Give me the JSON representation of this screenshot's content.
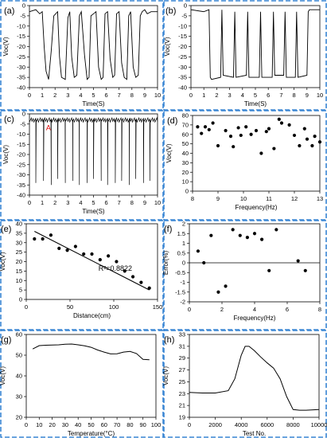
{
  "colors": {
    "frame": "#3a86d4",
    "ink": "#000000",
    "annotation": "#e00000"
  },
  "chart_data": [
    {
      "panel": "(a)",
      "type": "line",
      "xlabel": "Time(S)",
      "ylabel": "Voc(V)",
      "xlim": [
        0,
        10
      ],
      "ylim": [
        -40,
        0
      ],
      "xticks": [
        "0",
        "1",
        "2",
        "3",
        "4",
        "5",
        "6",
        "7",
        "8",
        "9",
        "10"
      ],
      "yticks": [
        "0",
        "-5",
        "-10",
        "-15",
        "-20",
        "-25",
        "-30",
        "-35",
        "-40"
      ],
      "series": [
        {
          "x": [
            0,
            0.5,
            0.8,
            1.0,
            1.15,
            1.3,
            1.5,
            1.7,
            1.9,
            2.2,
            2.35,
            2.5,
            2.8,
            3.0,
            3.15,
            3.3,
            3.5,
            3.7,
            3.9,
            4.05,
            4.3,
            4.5,
            4.65,
            4.8,
            5.0,
            5.2,
            5.4,
            5.6,
            5.75,
            5.9,
            6.1,
            6.3,
            6.5,
            6.65,
            6.8,
            7.0,
            7.2,
            7.4,
            7.6,
            7.75,
            7.9,
            8.1,
            8.3,
            8.5,
            8.65,
            8.8,
            9.0,
            9.2,
            9.5,
            10.0
          ],
          "values": [
            -3,
            -2,
            -4,
            -3,
            -20,
            -32,
            -36,
            -22,
            -5,
            -3,
            -25,
            -35,
            -36,
            -6,
            -3,
            -25,
            -35,
            -34,
            -5,
            -3,
            -24,
            -36,
            -35,
            -5,
            -4,
            -3,
            -30,
            -36,
            -35,
            -4,
            -3,
            -26,
            -35,
            -34,
            -4,
            -3,
            -28,
            -35,
            -36,
            -5,
            -3,
            -30,
            -35,
            -34,
            -5,
            -3,
            -2,
            -4,
            -3,
            -3
          ]
        }
      ]
    },
    {
      "panel": "(b)",
      "type": "line",
      "xlabel": "Time(S)",
      "ylabel": "Voc(V)",
      "xlim": [
        0,
        10
      ],
      "ylim": [
        -40,
        0
      ],
      "xticks": [
        "0",
        "1",
        "2",
        "3",
        "4",
        "5",
        "6",
        "7",
        "8",
        "9",
        "10"
      ],
      "yticks": [
        "0",
        "-5",
        "-10",
        "-15",
        "-20",
        "-25",
        "-30",
        "-35",
        "-40"
      ],
      "series": [
        {
          "x": [
            0,
            1.0,
            1.4,
            1.5,
            1.6,
            2.3,
            2.4,
            2.5,
            3.3,
            3.4,
            3.5,
            4.3,
            4.4,
            4.5,
            5.3,
            5.4,
            5.5,
            6.3,
            6.4,
            6.5,
            7.2,
            7.3,
            7.4,
            8.1,
            8.2,
            8.3,
            9.0,
            9.1,
            9.2,
            10.0
          ],
          "values": [
            -2,
            -3,
            -2,
            -35,
            -36,
            -35,
            -2,
            -34,
            -35,
            -3,
            -35,
            -34,
            -3,
            -35,
            -35,
            -3,
            -35,
            -35,
            -3,
            -34,
            -34,
            -3,
            -35,
            -35,
            -3,
            -35,
            -34,
            -3,
            -2,
            -2
          ]
        }
      ]
    },
    {
      "panel": "(c)",
      "type": "line",
      "xlabel": "Time(S)",
      "ylabel": "Voc(V)",
      "xlim": [
        0,
        10
      ],
      "ylim": [
        -40,
        0
      ],
      "xticks": [
        "0",
        "1",
        "2",
        "3",
        "4",
        "5",
        "6",
        "7",
        "8",
        "9",
        "10"
      ],
      "yticks": [
        "0",
        "-5",
        "-10",
        "-15",
        "-20",
        "-25",
        "-30",
        "-35",
        "-40"
      ],
      "baseline": -3,
      "spikes": [
        0.5,
        1.1,
        1.7,
        2.2,
        2.8,
        3.4,
        3.9,
        4.5,
        5.0,
        5.6,
        6.1,
        6.7,
        7.2,
        7.8,
        8.3,
        8.9,
        9.4
      ],
      "spike_depths": [
        -34,
        -33,
        -35,
        -32,
        -34,
        -33,
        -35,
        -34,
        -32,
        -33,
        -35,
        -34,
        -33,
        -35,
        -32,
        -34,
        -33
      ],
      "annotation": {
        "text": "A",
        "x": 1.3,
        "y": -8
      }
    },
    {
      "panel": "(d)",
      "type": "scatter",
      "xlabel": "Frequency(Hz)",
      "ylabel": "Voc(V)",
      "xlim": [
        8,
        13
      ],
      "ylim": [
        0,
        80
      ],
      "xticks": [
        "8",
        "9",
        "10",
        "11",
        "12",
        "13"
      ],
      "yticks": [
        "0",
        "10",
        "20",
        "30",
        "40",
        "50",
        "60",
        "70",
        "80"
      ],
      "x": [
        8.2,
        8.35,
        8.5,
        8.65,
        8.8,
        9.0,
        9.3,
        9.5,
        9.6,
        9.8,
        9.9,
        10.1,
        10.3,
        10.5,
        10.7,
        10.9,
        11.0,
        11.2,
        11.4,
        11.5,
        11.8,
        12.0,
        12.2,
        12.4,
        12.5,
        12.7,
        12.8,
        13.0
      ],
      "values": [
        68,
        61,
        68,
        65,
        72,
        48,
        64,
        58,
        47,
        67,
        59,
        68,
        60,
        64,
        40,
        63,
        66,
        45,
        76,
        72,
        70,
        59,
        48,
        66,
        55,
        48,
        58,
        52
      ]
    },
    {
      "panel": "(e)",
      "type": "scatter",
      "xlabel": "Distance(cm)",
      "ylabel": "Voc(V)",
      "xlim": [
        0,
        160
      ],
      "ylim": [
        0,
        40
      ],
      "xticks": [
        "0",
        "50",
        "100",
        "150"
      ],
      "yticks": [
        "0",
        "5",
        "10",
        "15",
        "20",
        "25",
        "30",
        "35",
        "40"
      ],
      "x": [
        10,
        20,
        30,
        40,
        50,
        60,
        70,
        80,
        90,
        100,
        110,
        120,
        130,
        140,
        150
      ],
      "values": [
        32,
        32,
        34,
        27,
        26,
        28,
        24,
        24,
        21,
        23,
        20,
        15,
        12,
        9,
        6
      ],
      "fit": {
        "x": [
          10,
          150
        ],
        "values": [
          36,
          5
        ]
      },
      "annotation": "R²=0.8822"
    },
    {
      "panel": "(f)",
      "type": "scatter",
      "xlabel": "Frequency(Hz)",
      "ylabel": "Error(%)",
      "xlim": [
        0,
        9
      ],
      "ylim": [
        -2,
        2
      ],
      "xticks": [
        "0",
        "2",
        "4",
        "6",
        "8"
      ],
      "yticks": [
        "2",
        "1.5",
        "1",
        "0.5",
        "0",
        "-0.5",
        "-1",
        "-1.5",
        "-2"
      ],
      "x": [
        0.6,
        1.0,
        1.5,
        2.0,
        2.5,
        3.0,
        3.5,
        4.0,
        4.5,
        5.0,
        5.5,
        6.0,
        7.5,
        8.0
      ],
      "values": [
        0.6,
        0.0,
        1.4,
        -1.5,
        -1.2,
        1.7,
        1.4,
        1.3,
        1.5,
        1.2,
        -0.4,
        1.7,
        0.1,
        -0.4
      ]
    },
    {
      "panel": "(g)",
      "type": "line",
      "xlabel": "Temperature(°C)",
      "ylabel": "Voc(V)",
      "xlim": [
        0,
        100
      ],
      "ylim": [
        20,
        60
      ],
      "xticks": [
        "0",
        "10",
        "20",
        "30",
        "40",
        "50",
        "60",
        "70",
        "80",
        "90",
        "100"
      ],
      "yticks": [
        "20",
        "30",
        "40",
        "50",
        "60"
      ],
      "x": [
        5,
        10,
        15,
        20,
        25,
        30,
        35,
        40,
        45,
        50,
        55,
        60,
        65,
        70,
        75,
        80,
        85,
        90,
        95
      ],
      "values": [
        53,
        54.6,
        54.8,
        54.9,
        55,
        55.3,
        55.4,
        55,
        54.5,
        53.8,
        52.5,
        51.5,
        50.6,
        50.7,
        51.5,
        51.8,
        50.8,
        48,
        47.8
      ]
    },
    {
      "panel": "(h)",
      "type": "line",
      "xlabel": "Test No.",
      "ylabel": "Voc(V)",
      "xlim": [
        0,
        10000
      ],
      "ylim": [
        19,
        33
      ],
      "xticks": [
        "0",
        "2000",
        "4000",
        "6000",
        "8000",
        "10000"
      ],
      "yticks": [
        "19",
        "21",
        "23",
        "25",
        "27",
        "29",
        "31",
        "33"
      ],
      "x": [
        0,
        1000,
        2000,
        3000,
        3500,
        4000,
        4300,
        4600,
        5000,
        5500,
        6000,
        6500,
        7000,
        7500,
        8000,
        8500,
        9000,
        10000
      ],
      "values": [
        23.2,
        23.1,
        23.1,
        23.5,
        25.5,
        29.5,
        31,
        31,
        30.3,
        29.2,
        28.2,
        27.3,
        25.5,
        22.5,
        20.3,
        20.2,
        20.2,
        20.3
      ]
    }
  ]
}
